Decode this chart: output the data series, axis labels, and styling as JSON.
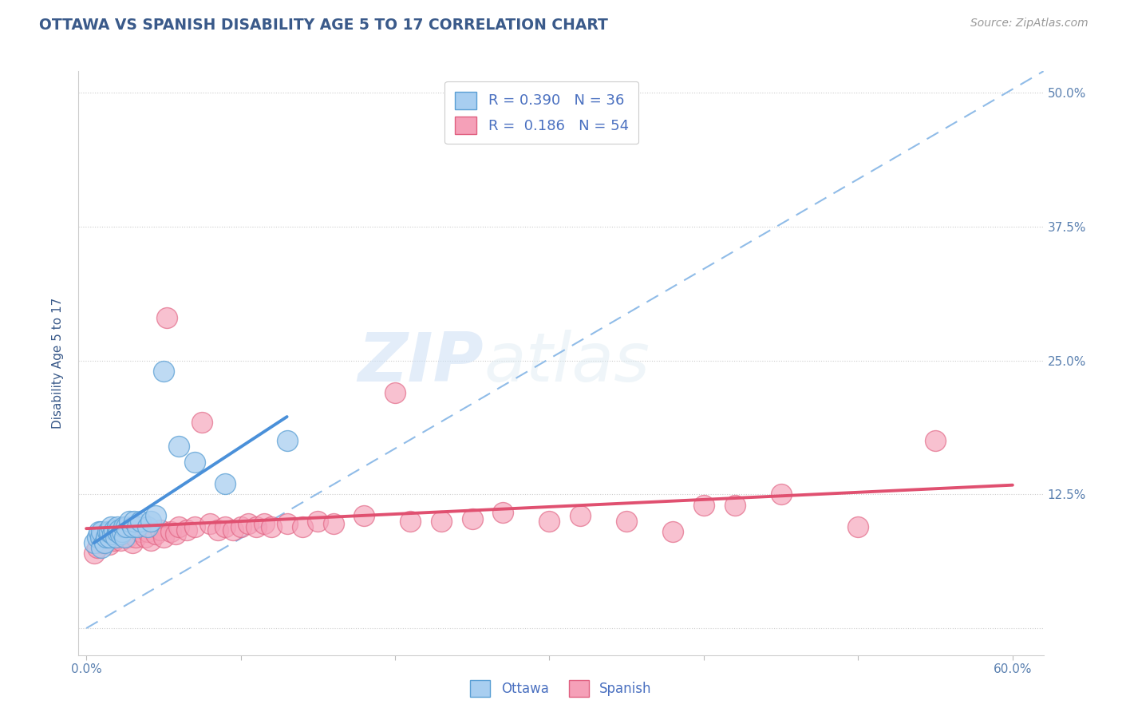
{
  "title": "OTTAWA VS SPANISH DISABILITY AGE 5 TO 17 CORRELATION CHART",
  "source_text": "Source: ZipAtlas.com",
  "xlabel": "",
  "ylabel": "Disability Age 5 to 17",
  "xlim": [
    -0.005,
    0.62
  ],
  "ylim": [
    -0.025,
    0.52
  ],
  "xticks": [
    0.0,
    0.1,
    0.2,
    0.3,
    0.4,
    0.5,
    0.6
  ],
  "xticklabels": [
    "0.0%",
    "",
    "",
    "",
    "",
    "",
    "60.0%"
  ],
  "yticks": [
    0.0,
    0.125,
    0.25,
    0.375,
    0.5
  ],
  "yticklabels": [
    "",
    "12.5%",
    "25.0%",
    "37.5%",
    "50.0%"
  ],
  "grid_color": "#cccccc",
  "background_color": "#ffffff",
  "watermark_text1": "ZIP",
  "watermark_text2": "atlas",
  "legend_R_ottawa": "0.390",
  "legend_N_ottawa": "36",
  "legend_R_spanish": "0.186",
  "legend_N_spanish": "54",
  "ottawa_color": "#a8cef0",
  "spanish_color": "#f5a0b8",
  "ottawa_edge_color": "#5a9fd4",
  "spanish_edge_color": "#e06080",
  "ottawa_line_color": "#4a90d9",
  "spanish_line_color": "#e05070",
  "dash_line_color": "#90bce8",
  "title_color": "#3a5a8a",
  "axis_label_color": "#3a5a8a",
  "tick_label_color": "#5a80b0",
  "legend_text_color": "#4a70c0",
  "ottawa_x": [
    0.005,
    0.007,
    0.008,
    0.009,
    0.01,
    0.01,
    0.012,
    0.013,
    0.014,
    0.015,
    0.015,
    0.016,
    0.017,
    0.018,
    0.019,
    0.02,
    0.02,
    0.021,
    0.022,
    0.023,
    0.024,
    0.025,
    0.026,
    0.028,
    0.03,
    0.031,
    0.033,
    0.035,
    0.04,
    0.042,
    0.045,
    0.05,
    0.06,
    0.07,
    0.09,
    0.13
  ],
  "ottawa_y": [
    0.08,
    0.085,
    0.09,
    0.085,
    0.075,
    0.09,
    0.08,
    0.085,
    0.09,
    0.085,
    0.09,
    0.095,
    0.088,
    0.092,
    0.085,
    0.09,
    0.095,
    0.092,
    0.088,
    0.09,
    0.095,
    0.085,
    0.095,
    0.1,
    0.095,
    0.1,
    0.095,
    0.1,
    0.095,
    0.1,
    0.105,
    0.24,
    0.17,
    0.155,
    0.135,
    0.175
  ],
  "spanish_x": [
    0.005,
    0.007,
    0.01,
    0.012,
    0.015,
    0.018,
    0.02,
    0.022,
    0.025,
    0.027,
    0.03,
    0.032,
    0.035,
    0.038,
    0.04,
    0.042,
    0.045,
    0.048,
    0.05,
    0.052,
    0.055,
    0.058,
    0.06,
    0.065,
    0.07,
    0.075,
    0.08,
    0.085,
    0.09,
    0.095,
    0.1,
    0.105,
    0.11,
    0.115,
    0.12,
    0.13,
    0.14,
    0.15,
    0.16,
    0.18,
    0.2,
    0.21,
    0.23,
    0.25,
    0.27,
    0.3,
    0.32,
    0.35,
    0.38,
    0.4,
    0.42,
    0.45,
    0.5,
    0.55
  ],
  "spanish_y": [
    0.07,
    0.075,
    0.08,
    0.082,
    0.078,
    0.082,
    0.085,
    0.082,
    0.088,
    0.085,
    0.08,
    0.085,
    0.09,
    0.085,
    0.09,
    0.082,
    0.088,
    0.092,
    0.085,
    0.29,
    0.09,
    0.088,
    0.095,
    0.092,
    0.095,
    0.192,
    0.098,
    0.092,
    0.095,
    0.092,
    0.095,
    0.098,
    0.095,
    0.098,
    0.095,
    0.098,
    0.095,
    0.1,
    0.098,
    0.105,
    0.22,
    0.1,
    0.1,
    0.102,
    0.108,
    0.1,
    0.105,
    0.1,
    0.09,
    0.115,
    0.115,
    0.125,
    0.095,
    0.175
  ],
  "dashed_line_x": [
    0.0,
    0.62
  ],
  "dashed_line_y": [
    0.0,
    0.52
  ]
}
